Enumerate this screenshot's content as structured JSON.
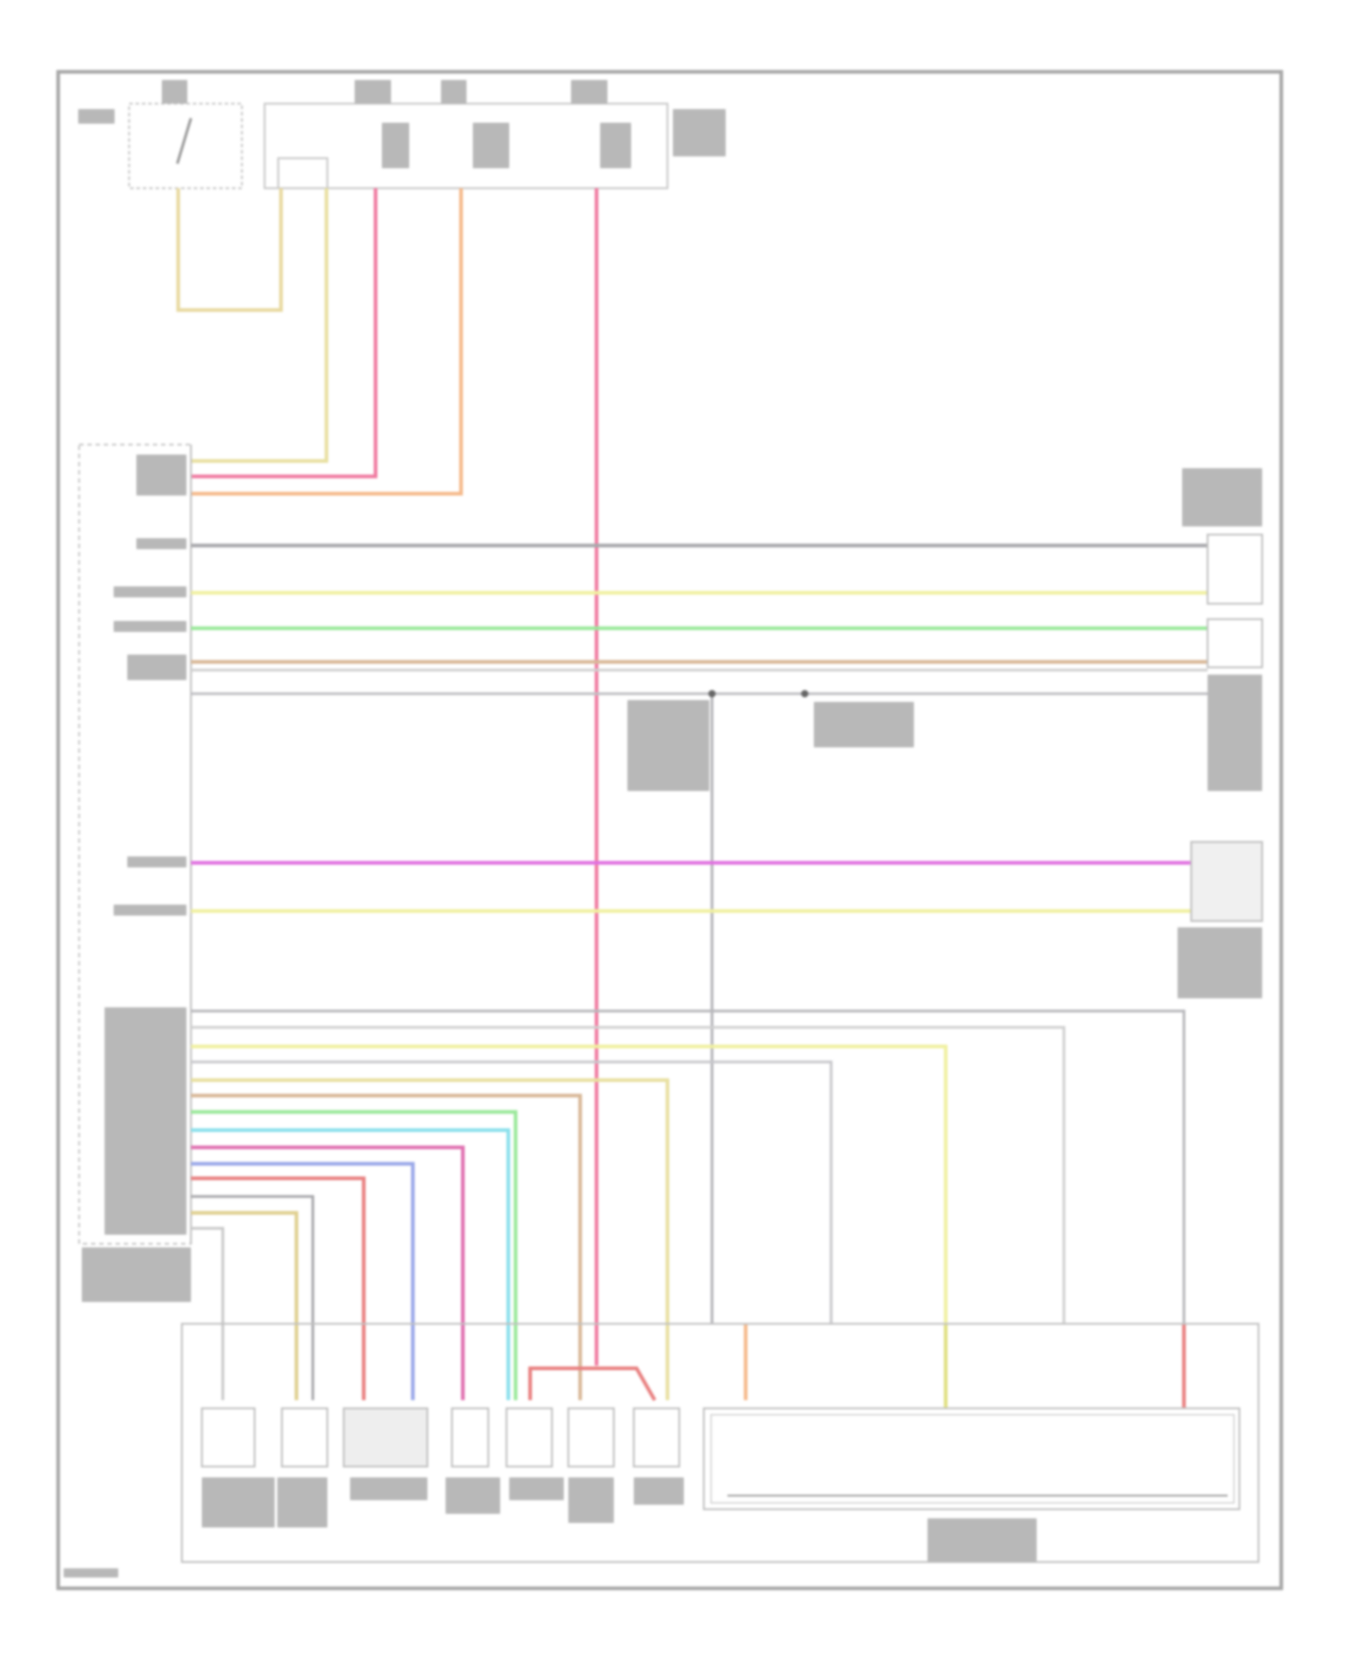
{
  "diagram": {
    "title": "",
    "wire_colors": {
      "yellow_tan": "#e8d9a0",
      "pink": "#f07aa0",
      "orange": "#f5b98a",
      "gray": "#b4b4b8",
      "light_yellow": "#f0f0a0",
      "green": "#9ae89a",
      "tan": "#d8b898",
      "magenta": "#e070e0",
      "cyan": "#8ae0ec",
      "blue": "#9aa8e8",
      "red": "#e88080",
      "border": "#a8a8a8"
    }
  }
}
